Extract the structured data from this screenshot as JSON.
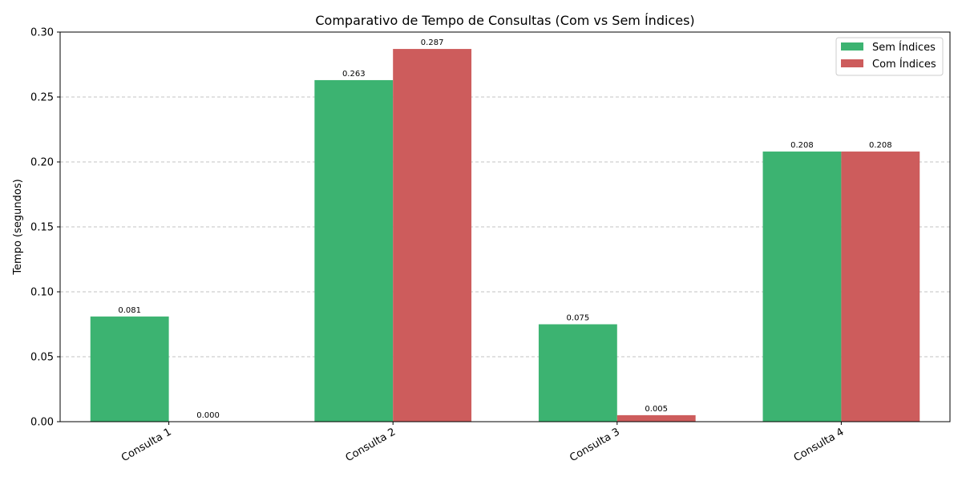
{
  "chart_data": {
    "type": "bar",
    "title": "Comparativo de Tempo de Consultas (Com vs Sem Índices)",
    "xlabel": "",
    "ylabel": "Tempo (segundos)",
    "categories": [
      "Consulta 1",
      "Consulta 2",
      "Consulta 3",
      "Consulta 4"
    ],
    "series": [
      {
        "name": "Sem Índices",
        "color": "#3cb371",
        "values": [
          0.081,
          0.263,
          0.075,
          0.208
        ],
        "labels": [
          "0.081",
          "0.263",
          "0.075",
          "0.208"
        ]
      },
      {
        "name": "Com Índices",
        "color": "#cd5c5c",
        "values": [
          0.0,
          0.287,
          0.005,
          0.208
        ],
        "labels": [
          "0.000",
          "0.287",
          "0.005",
          "0.208"
        ]
      }
    ],
    "ylim": [
      0,
      0.3
    ],
    "yticks": [
      "0.00",
      "0.05",
      "0.10",
      "0.15",
      "0.20",
      "0.25",
      "0.30"
    ],
    "grid": "y-dashed",
    "legend": "top-right"
  }
}
